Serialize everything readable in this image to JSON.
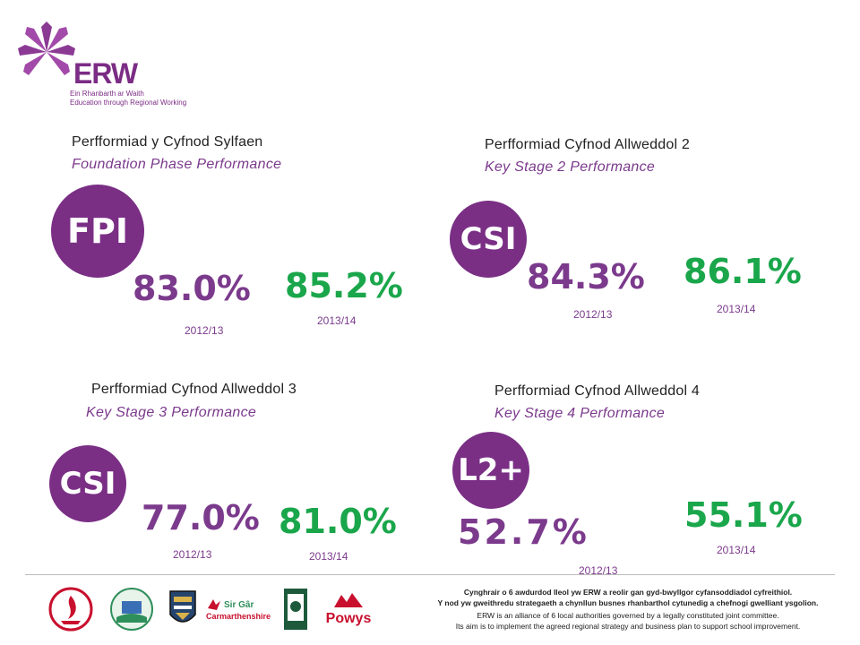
{
  "logo": {
    "name": "ERW",
    "tagline_cy": "Ein Rhanbarth ar Waith",
    "tagline_en": "Education through Regional Working"
  },
  "panels": [
    {
      "heading_cy": "Perfformiad y Cyfnod Sylfaen",
      "heading_en": "Foundation Phase Performance",
      "indicator": "FPI",
      "value_2012": "83.0%",
      "year_2012": "2012/13",
      "value_2013": "85.2%",
      "year_2013": "2013/14"
    },
    {
      "heading_cy": "Perfformiad Cyfnod Allweddol 2",
      "heading_en": "Key Stage 2 Performance",
      "indicator": "CSI",
      "value_2012": "84.3%",
      "year_2012": "2012/13",
      "value_2013": "86.1%",
      "year_2013": "2013/14"
    },
    {
      "heading_cy": "Perfformiad Cyfnod Allweddol 3",
      "heading_en": "Key Stage 3 Performance",
      "indicator": "CSI",
      "value_2012": "77.0%",
      "year_2012": "2012/13",
      "value_2013": "81.0%",
      "year_2013": "2013/14"
    },
    {
      "heading_cy": "Perfformiad Cyfnod Allweddol 4",
      "heading_en": "Key Stage 4 Performance",
      "indicator": "L2+",
      "value_2012": "52.7%",
      "year_2012": "2012/13",
      "value_2013": "55.1%",
      "year_2013": "2013/14"
    }
  ],
  "colors": {
    "purple": "#7a2f85",
    "green": "#1aa64b"
  },
  "footer": {
    "council_logos": [
      "City and County of Swansea",
      "Neath Port Talbot County Borough Council",
      "Ceredigion",
      "Sir Gâr Carmarthenshire County Council",
      "Pembrokeshire",
      "Powys"
    ],
    "powys_label": "Powys",
    "sirgar_label": "Sir Gâr",
    "carm_label": "Carmarthenshire",
    "line1_cy": "Cynghrair o 6 awdurdod lleol yw ERW a reolir gan gyd-bwyllgor cyfansoddiadol cyfreithiol.",
    "line2_cy": "Y nod yw gweithredu strategaeth a chynllun busnes rhanbarthol cytunedig a chefnogi gwelliant ysgolion.",
    "line1_en": "ERW is an alliance of 6 local authorities governed by a legally constituted joint committee.",
    "line2_en": "Its aim is to implement the agreed regional strategy and business plan to support school improvement."
  }
}
